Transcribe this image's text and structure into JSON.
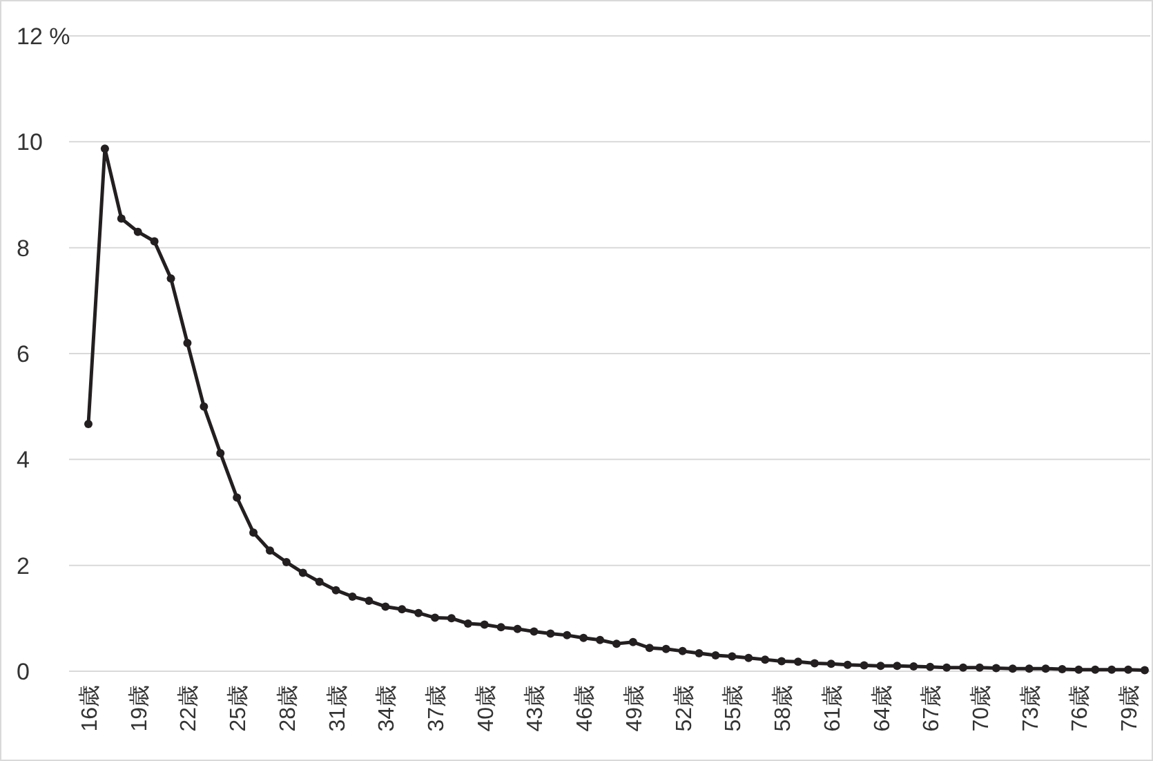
{
  "chart_data": {
    "type": "line",
    "categories": [
      "16歳",
      null,
      null,
      "19歳",
      null,
      null,
      "22歳",
      null,
      null,
      "25歳",
      null,
      null,
      "28歳",
      null,
      null,
      "31歳",
      null,
      null,
      "34歳",
      null,
      null,
      "37歳",
      null,
      null,
      "40歳",
      null,
      null,
      "43歳",
      null,
      null,
      "46歳",
      null,
      null,
      "49歳",
      null,
      null,
      "52歳",
      null,
      null,
      "55歳",
      null,
      null,
      "58歳",
      null,
      null,
      "61歳",
      null,
      null,
      "64歳",
      null,
      null,
      "67歳",
      null,
      null,
      "70歳",
      null,
      null,
      "73歳",
      null,
      null,
      "76歳",
      null,
      null,
      "79歳",
      null
    ],
    "values": [
      4.67,
      9.87,
      8.55,
      8.3,
      8.12,
      7.42,
      6.2,
      5.0,
      4.12,
      3.28,
      2.62,
      2.28,
      2.06,
      1.86,
      1.69,
      1.53,
      1.41,
      1.33,
      1.22,
      1.17,
      1.1,
      1.01,
      1.0,
      0.9,
      0.88,
      0.83,
      0.8,
      0.75,
      0.71,
      0.68,
      0.63,
      0.59,
      0.52,
      0.55,
      0.44,
      0.42,
      0.38,
      0.34,
      0.3,
      0.28,
      0.25,
      0.22,
      0.19,
      0.18,
      0.15,
      0.14,
      0.12,
      0.11,
      0.1,
      0.1,
      0.09,
      0.08,
      0.07,
      0.07,
      0.07,
      0.06,
      0.05,
      0.05,
      0.05,
      0.04,
      0.03,
      0.03,
      0.03,
      0.03,
      0.02
    ],
    "color": "#231f20",
    "ylim": [
      0,
      12
    ],
    "yticks": [
      0,
      2,
      4,
      6,
      8,
      10,
      {
        "value": 12,
        "label": "12 %"
      }
    ],
    "grid": "y",
    "marker": "circle",
    "line_style": "solid"
  }
}
